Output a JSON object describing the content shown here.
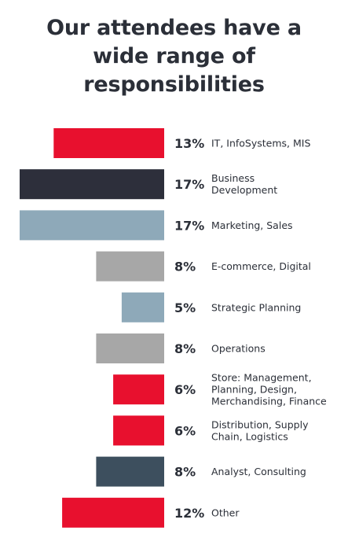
{
  "title_lines": [
    "Our attendees have a",
    "wide range of",
    "responsibilities"
  ],
  "chart_data": {
    "type": "bar",
    "orientation": "horizontal",
    "title": "Our attendees have a wide range of responsibilities",
    "categories": [
      "IT, InfoSystems, MIS",
      "Business Development",
      "Marketing, Sales",
      "E-commerce, Digital",
      "Strategic Planning",
      "Operations",
      "Store: Management, Planning, Design, Merchandising, Finance",
      "Distribution, Supply Chain, Logistics",
      "Analyst, Consulting",
      "Other"
    ],
    "category_lines": [
      [
        "IT, InfoSystems, MIS"
      ],
      [
        "Business",
        "Development"
      ],
      [
        "Marketing, Sales"
      ],
      [
        "E-commerce, Digital"
      ],
      [
        "Strategic Planning"
      ],
      [
        "Operations"
      ],
      [
        "Store: Management,",
        "Planning, Design,",
        "Merchandising, Finance"
      ],
      [
        "Distribution, Supply",
        "Chain, Logistics"
      ],
      [
        "Analyst, Consulting"
      ],
      [
        "Other"
      ]
    ],
    "values": [
      13,
      17,
      17,
      8,
      5,
      8,
      6,
      6,
      8,
      12
    ],
    "value_labels": [
      "13%",
      "17%",
      "17%",
      "8%",
      "5%",
      "8%",
      "6%",
      "6%",
      "8%",
      "12%"
    ],
    "unit": "%",
    "bar_colors": [
      "#e8102e",
      "#2d2f3b",
      "#8ea9b9",
      "#a7a7a7",
      "#8ea9b9",
      "#a7a7a7",
      "#e8102e",
      "#e8102e",
      "#3d4f5e",
      "#e8102e"
    ],
    "xlim": [
      0,
      17
    ],
    "grid": false,
    "legend": "none"
  }
}
